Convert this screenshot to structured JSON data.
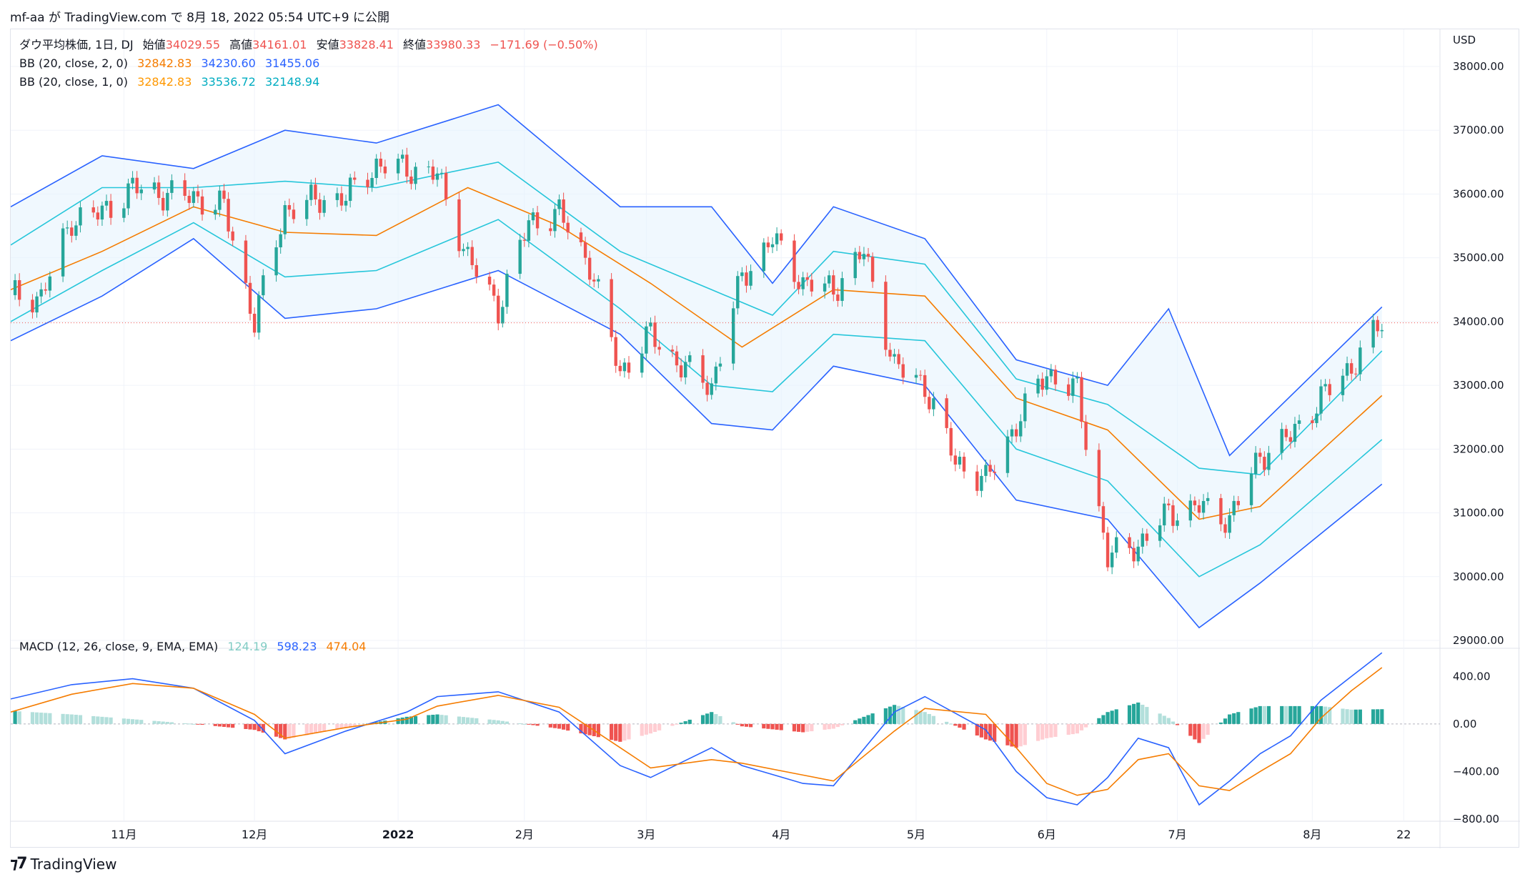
{
  "header": {
    "publish_line": "mf-aa が TradingView.com で 8月 18, 2022 05:54 UTC+9 に公開"
  },
  "legend": {
    "symbol": "ダウ平均株価, 1日, DJ",
    "open_label": "始値",
    "open": "34029.55",
    "high_label": "高値",
    "high": "34161.01",
    "low_label": "安値",
    "low": "33828.41",
    "close_label": "終値",
    "close": "33980.33",
    "change": "−171.69 (−0.50%)",
    "bb1_label": "BB (20, close, 2, 0)",
    "bb1_basis": "32842.83",
    "bb1_upper": "34230.60",
    "bb1_lower": "31455.06",
    "bb2_label": "BB (20, close, 1, 0)",
    "bb2_basis": "32842.83",
    "bb2_upper": "33536.72",
    "bb2_lower": "32148.94",
    "macd_label": "MACD (12, 26, close, 9, EMA, EMA)",
    "macd_hist": "124.19",
    "macd_line": "598.23",
    "macd_signal": "474.04"
  },
  "colors": {
    "up": "#26a69a",
    "down": "#ef5350",
    "up_light": "#b2dfdb",
    "down_light": "#ffcdd2",
    "bb_outer": "#2962ff",
    "bb_inner": "#26c6da",
    "basis": "#f57c00",
    "fill": "#e3f2fd",
    "macd_line": "#2962ff",
    "macd_signal": "#f57c00",
    "text_orange": "#f57c00",
    "text_blue": "#2962ff"
  },
  "footer": {
    "brand": "TradingView"
  },
  "chart_data": [
    {
      "type": "candlestick",
      "title": "ダウ平均株価, 1日, DJ",
      "currency": "USD",
      "ylim": [
        29000,
        38000
      ],
      "yticks": [
        29000,
        30000,
        31000,
        32000,
        33000,
        34000,
        35000,
        36000,
        37000,
        38000
      ],
      "ytick_labels": [
        "29000.00",
        "30000.00",
        "31000.00",
        "32000.00",
        "33000.00",
        "34000.00",
        "35000.00",
        "36000.00",
        "37000.00",
        "38000.00"
      ],
      "last_close": 33980.33,
      "xtick_labels": [
        "11月",
        "12月",
        "2022",
        "2月",
        "3月",
        "4月",
        "5月",
        "6月",
        "7月",
        "8月",
        "22"
      ],
      "xtick_dates": [
        "2021-11-01",
        "2021-12-01",
        "2022-01-03",
        "2022-02-01",
        "2022-03-01",
        "2022-04-01",
        "2022-05-02",
        "2022-06-01",
        "2022-07-01",
        "2022-08-01",
        "2022-08-22"
      ],
      "x_start": "2021-10-06",
      "x_end": "2022-08-30",
      "close_series": [
        [
          "2021-10-06",
          34420
        ],
        [
          "2021-10-13",
          34380
        ],
        [
          "2021-10-20",
          35600
        ],
        [
          "2021-10-27",
          35700
        ],
        [
          "2021-11-03",
          36100
        ],
        [
          "2021-11-10",
          36000
        ],
        [
          "2021-11-17",
          35950
        ],
        [
          "2021-11-24",
          35800
        ],
        [
          "2021-12-01",
          34000
        ],
        [
          "2021-12-08",
          35750
        ],
        [
          "2021-12-15",
          35900
        ],
        [
          "2021-12-22",
          35950
        ],
        [
          "2021-12-29",
          36450
        ],
        [
          "2022-01-05",
          36400
        ],
        [
          "2022-01-12",
          36300
        ],
        [
          "2022-01-19",
          35000
        ],
        [
          "2022-01-26",
          34200
        ],
        [
          "2022-02-02",
          35550
        ],
        [
          "2022-02-09",
          35700
        ],
        [
          "2022-02-16",
          34900
        ],
        [
          "2022-02-23",
          33200
        ],
        [
          "2022-03-02",
          33800
        ],
        [
          "2022-03-09",
          33300
        ],
        [
          "2022-03-16",
          33000
        ],
        [
          "2022-03-23",
          34700
        ],
        [
          "2022-03-30",
          35300
        ],
        [
          "2022-04-06",
          34600
        ],
        [
          "2022-04-13",
          34500
        ],
        [
          "2022-04-20",
          35100
        ],
        [
          "2022-04-27",
          33300
        ],
        [
          "2022-05-04",
          33000
        ],
        [
          "2022-05-11",
          31800
        ],
        [
          "2022-05-18",
          31500
        ],
        [
          "2022-05-25",
          32400
        ],
        [
          "2022-06-01",
          33200
        ],
        [
          "2022-06-08",
          32900
        ],
        [
          "2022-06-15",
          30300
        ],
        [
          "2022-06-22",
          30500
        ],
        [
          "2022-06-29",
          31000
        ],
        [
          "2022-07-06",
          31100
        ],
        [
          "2022-07-13",
          30900
        ],
        [
          "2022-07-20",
          31900
        ],
        [
          "2022-07-27",
          32200
        ],
        [
          "2022-08-03",
          32800
        ],
        [
          "2022-08-10",
          33300
        ],
        [
          "2022-08-17",
          33980
        ]
      ],
      "bb_basis": [
        [
          "2021-10-06",
          34500
        ],
        [
          "2021-10-27",
          35100
        ],
        [
          "2021-11-17",
          35800
        ],
        [
          "2021-12-08",
          35400
        ],
        [
          "2021-12-29",
          35350
        ],
        [
          "2022-01-19",
          36100
        ],
        [
          "2022-02-09",
          35500
        ],
        [
          "2022-03-02",
          34600
        ],
        [
          "2022-03-23",
          33600
        ],
        [
          "2022-04-13",
          34500
        ],
        [
          "2022-05-04",
          34400
        ],
        [
          "2022-05-25",
          32800
        ],
        [
          "2022-06-15",
          32300
        ],
        [
          "2022-07-06",
          30900
        ],
        [
          "2022-07-20",
          31100
        ],
        [
          "2022-08-17",
          32840
        ]
      ],
      "bb_upper_2sd": [
        [
          "2021-10-06",
          35800
        ],
        [
          "2021-10-27",
          36600
        ],
        [
          "2021-11-17",
          36400
        ],
        [
          "2021-12-08",
          37000
        ],
        [
          "2021-12-29",
          36800
        ],
        [
          "2022-01-26",
          37400
        ],
        [
          "2022-02-23",
          35800
        ],
        [
          "2022-03-16",
          35800
        ],
        [
          "2022-03-30",
          34600
        ],
        [
          "2022-04-13",
          35800
        ],
        [
          "2022-05-04",
          35300
        ],
        [
          "2022-05-25",
          33400
        ],
        [
          "2022-06-15",
          33000
        ],
        [
          "2022-06-29",
          34200
        ],
        [
          "2022-07-13",
          31900
        ],
        [
          "2022-08-17",
          34230
        ]
      ],
      "bb_lower_2sd": [
        [
          "2021-10-06",
          33700
        ],
        [
          "2021-10-27",
          34400
        ],
        [
          "2021-11-17",
          35300
        ],
        [
          "2021-12-08",
          34050
        ],
        [
          "2021-12-29",
          34200
        ],
        [
          "2022-01-26",
          34800
        ],
        [
          "2022-02-23",
          33800
        ],
        [
          "2022-03-16",
          32400
        ],
        [
          "2022-03-30",
          32300
        ],
        [
          "2022-04-13",
          33300
        ],
        [
          "2022-05-04",
          33000
        ],
        [
          "2022-05-25",
          31200
        ],
        [
          "2022-06-15",
          30900
        ],
        [
          "2022-07-06",
          29200
        ],
        [
          "2022-07-20",
          29900
        ],
        [
          "2022-08-17",
          31450
        ]
      ],
      "bb_upper_1sd": [
        [
          "2021-10-06",
          35200
        ],
        [
          "2021-10-27",
          36100
        ],
        [
          "2021-11-17",
          36100
        ],
        [
          "2021-12-08",
          36200
        ],
        [
          "2021-12-29",
          36100
        ],
        [
          "2022-01-26",
          36500
        ],
        [
          "2022-02-23",
          35100
        ],
        [
          "2022-03-16",
          34500
        ],
        [
          "2022-03-30",
          34100
        ],
        [
          "2022-04-13",
          35100
        ],
        [
          "2022-05-04",
          34900
        ],
        [
          "2022-05-25",
          33100
        ],
        [
          "2022-06-15",
          32700
        ],
        [
          "2022-07-06",
          31700
        ],
        [
          "2022-07-20",
          31600
        ],
        [
          "2022-08-17",
          33540
        ]
      ],
      "bb_lower_1sd": [
        [
          "2021-10-06",
          34000
        ],
        [
          "2021-10-27",
          34800
        ],
        [
          "2021-11-17",
          35550
        ],
        [
          "2021-12-08",
          34700
        ],
        [
          "2021-12-29",
          34800
        ],
        [
          "2022-01-26",
          35600
        ],
        [
          "2022-02-23",
          34200
        ],
        [
          "2022-03-16",
          33000
        ],
        [
          "2022-03-30",
          32900
        ],
        [
          "2022-04-13",
          33800
        ],
        [
          "2022-05-04",
          33700
        ],
        [
          "2022-05-25",
          32000
        ],
        [
          "2022-06-15",
          31500
        ],
        [
          "2022-07-06",
          30000
        ],
        [
          "2022-07-20",
          30500
        ],
        [
          "2022-08-17",
          32150
        ]
      ]
    },
    {
      "type": "macd",
      "title": "MACD (12, 26, close, 9, EMA, EMA)",
      "ylim": [
        -800,
        600
      ],
      "yticks": [
        -800,
        -400,
        0,
        400
      ],
      "ytick_labels": [
        "−800.00",
        "−400.00",
        "0.00",
        "400.00"
      ],
      "macd_line": [
        [
          "2021-10-06",
          210
        ],
        [
          "2021-10-20",
          330
        ],
        [
          "2021-11-03",
          380
        ],
        [
          "2021-11-17",
          300
        ],
        [
          "2021-12-01",
          30
        ],
        [
          "2021-12-08",
          -250
        ],
        [
          "2021-12-22",
          -60
        ],
        [
          "2022-01-05",
          100
        ],
        [
          "2022-01-12",
          230
        ],
        [
          "2022-01-26",
          270
        ],
        [
          "2022-02-09",
          100
        ],
        [
          "2022-02-23",
          -350
        ],
        [
          "2022-03-02",
          -450
        ],
        [
          "2022-03-16",
          -200
        ],
        [
          "2022-03-23",
          -350
        ],
        [
          "2022-04-06",
          -500
        ],
        [
          "2022-04-13",
          -520
        ],
        [
          "2022-04-27",
          100
        ],
        [
          "2022-05-04",
          230
        ],
        [
          "2022-05-18",
          -50
        ],
        [
          "2022-05-25",
          -400
        ],
        [
          "2022-06-01",
          -620
        ],
        [
          "2022-06-08",
          -680
        ],
        [
          "2022-06-15",
          -450
        ],
        [
          "2022-06-22",
          -120
        ],
        [
          "2022-06-29",
          -200
        ],
        [
          "2022-07-06",
          -680
        ],
        [
          "2022-07-13",
          -480
        ],
        [
          "2022-07-20",
          -250
        ],
        [
          "2022-07-27",
          -100
        ],
        [
          "2022-08-03",
          200
        ],
        [
          "2022-08-10",
          400
        ],
        [
          "2022-08-17",
          598
        ]
      ],
      "signal_line": [
        [
          "2021-10-06",
          100
        ],
        [
          "2021-10-20",
          250
        ],
        [
          "2021-11-03",
          340
        ],
        [
          "2021-11-17",
          300
        ],
        [
          "2021-12-01",
          80
        ],
        [
          "2021-12-08",
          -120
        ],
        [
          "2021-12-22",
          -30
        ],
        [
          "2022-01-05",
          40
        ],
        [
          "2022-01-12",
          150
        ],
        [
          "2022-01-26",
          240
        ],
        [
          "2022-02-09",
          140
        ],
        [
          "2022-02-23",
          -200
        ],
        [
          "2022-03-02",
          -370
        ],
        [
          "2022-03-16",
          -300
        ],
        [
          "2022-03-23",
          -330
        ],
        [
          "2022-04-06",
          -430
        ],
        [
          "2022-04-13",
          -480
        ],
        [
          "2022-04-27",
          -60
        ],
        [
          "2022-05-04",
          130
        ],
        [
          "2022-05-18",
          80
        ],
        [
          "2022-05-25",
          -200
        ],
        [
          "2022-06-01",
          -500
        ],
        [
          "2022-06-08",
          -600
        ],
        [
          "2022-06-15",
          -550
        ],
        [
          "2022-06-22",
          -300
        ],
        [
          "2022-06-29",
          -250
        ],
        [
          "2022-07-06",
          -520
        ],
        [
          "2022-07-13",
          -560
        ],
        [
          "2022-07-20",
          -400
        ],
        [
          "2022-07-27",
          -250
        ],
        [
          "2022-08-03",
          50
        ],
        [
          "2022-08-10",
          280
        ],
        [
          "2022-08-17",
          474
        ]
      ]
    }
  ]
}
